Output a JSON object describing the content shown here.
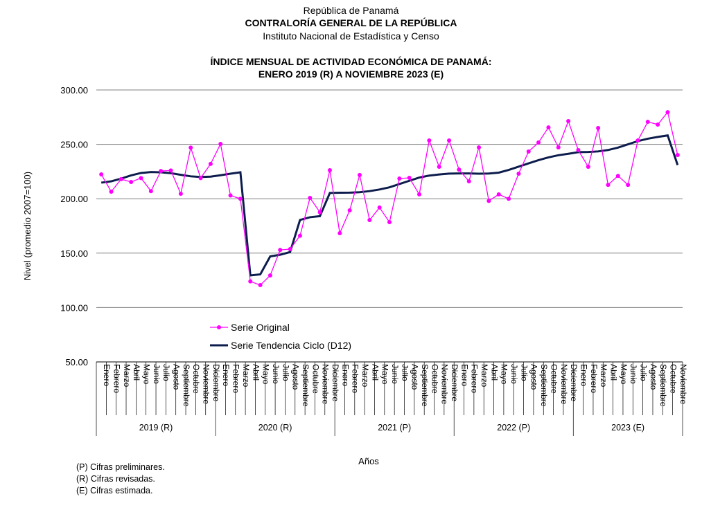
{
  "header": {
    "line1": "República de Panamá",
    "line2": "CONTRALORÍA  GENERAL DE LA REPÚBLICA",
    "line3": "Instituto Nacional de Estadística y Censo"
  },
  "notes": [
    "(P) Cifras preliminares.",
    "(R) Cifras revisadas.",
    "(E) Cifras estimada."
  ],
  "chart_data": {
    "type": "line",
    "title": "ÍNDICE MENSUAL DE ACTIVIDAD ECONÓMICA DE PANAMÁ:",
    "subtitle": "ENERO 2019 (R) A NOVIEMBRE 2023 (E)",
    "xlabel": "Años",
    "ylabel": "Nivel (promedio 2007=100)",
    "ylim": [
      50,
      300
    ],
    "yticks": [
      "50.00",
      "100.00",
      "150.00",
      "200.00",
      "250.00",
      "300.00"
    ],
    "grid": true,
    "legend": "inside-bottom-left",
    "months": [
      "Enero",
      "Febrero",
      "Marzo",
      "Abril",
      "Mayo",
      "Junio",
      "Julio",
      "Agosto",
      "Septiembre",
      "Octubre",
      "Noviembre",
      "Diciembre"
    ],
    "years": [
      {
        "label": "2019 (R)",
        "months": 12
      },
      {
        "label": "2020 (R)",
        "months": 12
      },
      {
        "label": "2021 (P)",
        "months": 12
      },
      {
        "label": "2022 (P)",
        "months": 12
      },
      {
        "label": "2023 (E)",
        "months": 11
      }
    ],
    "series": [
      {
        "name": "Serie Original",
        "color": "#ff00ff",
        "marker": "circle",
        "values": [
          222.4,
          206.5,
          218,
          215.4,
          219,
          207,
          225.5,
          226,
          204.6,
          247,
          219,
          232,
          250.4,
          203,
          200,
          124,
          120.6,
          129.5,
          153,
          153.7,
          166,
          200.8,
          187.6,
          226.2,
          168.3,
          189.3,
          221.8,
          180.4,
          191.9,
          178.5,
          218.6,
          219.2,
          204,
          253.6,
          229.4,
          253.6,
          226.8,
          216,
          247.2,
          198,
          204,
          200,
          223,
          243.4,
          251.7,
          265.6,
          247.2,
          271.4,
          244.7,
          229.4,
          265,
          212.8,
          221,
          212.8,
          253.6,
          270.7,
          268.2,
          279.6,
          240.2
        ]
      },
      {
        "name": "Serie Tendencia Ciclo (D12)",
        "color": "#0c1c4c",
        "marker": "none",
        "values": [
          214.8,
          216,
          218.5,
          221.5,
          223.7,
          224.5,
          224.3,
          223.5,
          222,
          220.6,
          220,
          220.3,
          221.6,
          223,
          224.3,
          129.5,
          130.5,
          147,
          148.5,
          151,
          180.5,
          183,
          184,
          205.3,
          205.5,
          205.6,
          206,
          207,
          208.5,
          210.5,
          213.5,
          216.5,
          219.5,
          221.3,
          222.3,
          223.1,
          223.3,
          223.3,
          223,
          223.2,
          224,
          226.5,
          229.5,
          232.5,
          235.5,
          238,
          240,
          241.3,
          242.8,
          243,
          243.5,
          244.8,
          247,
          250,
          253,
          255.2,
          256.8,
          258.2,
          231
        ]
      }
    ]
  }
}
